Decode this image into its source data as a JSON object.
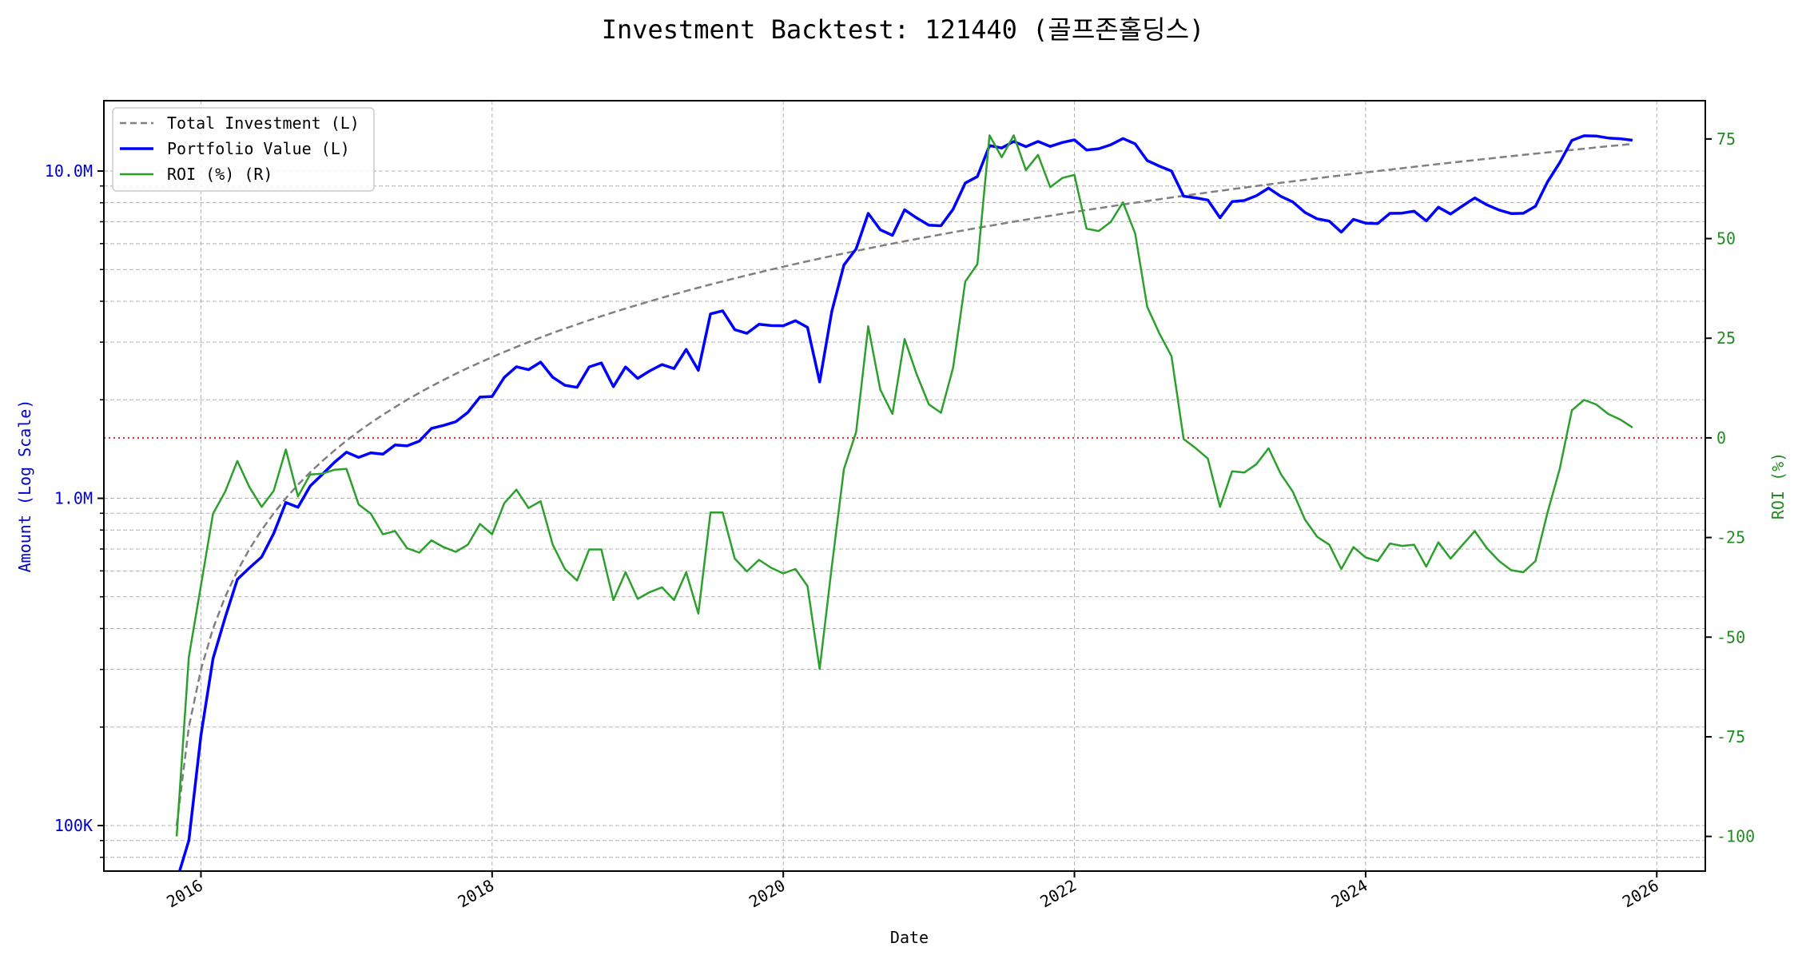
{
  "chart_data": {
    "type": "line",
    "title": "Investment Backtest: 121440 (골프존홀딩스)",
    "xlabel": "Date",
    "ylabel_left": "Amount (Log Scale)",
    "ylabel_right": "ROI (%)",
    "x_ticks": [
      "2016",
      "2018",
      "2020",
      "2022",
      "2024",
      "2026"
    ],
    "x_range": [
      "2015-05",
      "2026-05"
    ],
    "y_left_scale": "log",
    "y_left_range": [
      72600,
      16400000
    ],
    "y_left_ticks": [
      {
        "value": 100000,
        "label": "100K"
      },
      {
        "value": 1000000,
        "label": "1.0M"
      },
      {
        "value": 10000000,
        "label": "10.0M"
      }
    ],
    "y_right_range": [
      -108.7,
      84.6
    ],
    "y_right_ticks": [
      {
        "value": -100,
        "label": "-100"
      },
      {
        "value": -75,
        "label": "-75"
      },
      {
        "value": -50,
        "label": "-50"
      },
      {
        "value": -25,
        "label": "-25"
      },
      {
        "value": 0,
        "label": "0"
      },
      {
        "value": 25,
        "label": "25"
      },
      {
        "value": 50,
        "label": "50"
      },
      {
        "value": 75,
        "label": "75"
      }
    ],
    "grid": true,
    "legend_position": "top-left",
    "reference_line": {
      "axis": "right",
      "value": 0,
      "color": "#d62728",
      "style": "dotted"
    },
    "dates": [
      "2015-11",
      "2015-12",
      "2016-01",
      "2016-02",
      "2016-03",
      "2016-04",
      "2016-05",
      "2016-06",
      "2016-07",
      "2016-08",
      "2016-09",
      "2016-10",
      "2016-11",
      "2016-12",
      "2017-01",
      "2017-02",
      "2017-03",
      "2017-04",
      "2017-05",
      "2017-06",
      "2017-07",
      "2017-08",
      "2017-09",
      "2017-10",
      "2017-11",
      "2017-12",
      "2018-01",
      "2018-02",
      "2018-03",
      "2018-04",
      "2018-05",
      "2018-06",
      "2018-07",
      "2018-08",
      "2018-09",
      "2018-10",
      "2018-11",
      "2018-12",
      "2019-01",
      "2019-02",
      "2019-03",
      "2019-04",
      "2019-05",
      "2019-06",
      "2019-07",
      "2019-08",
      "2019-09",
      "2019-10",
      "2019-11",
      "2019-12",
      "2020-01",
      "2020-02",
      "2020-03",
      "2020-04",
      "2020-05",
      "2020-06",
      "2020-07",
      "2020-08",
      "2020-09",
      "2020-10",
      "2020-11",
      "2020-12",
      "2021-01",
      "2021-02",
      "2021-03",
      "2021-04",
      "2021-05",
      "2021-06",
      "2021-07",
      "2021-08",
      "2021-09",
      "2021-10",
      "2021-11",
      "2021-12",
      "2022-01",
      "2022-02",
      "2022-03",
      "2022-04",
      "2022-05",
      "2022-06",
      "2022-07",
      "2022-08",
      "2022-09",
      "2022-10",
      "2022-11",
      "2022-12",
      "2023-01",
      "2023-02",
      "2023-03",
      "2023-04",
      "2023-05",
      "2023-06",
      "2023-07",
      "2023-08",
      "2023-09",
      "2023-10",
      "2023-11",
      "2023-12",
      "2024-01",
      "2024-02",
      "2024-03",
      "2024-04",
      "2024-05",
      "2024-06",
      "2024-07",
      "2024-08",
      "2024-09",
      "2024-10",
      "2024-11",
      "2024-12",
      "2025-01",
      "2025-02",
      "2025-03",
      "2025-04",
      "2025-05",
      "2025-06",
      "2025-07",
      "2025-08",
      "2025-09",
      "2025-10",
      "2025-11"
    ],
    "series": [
      {
        "name": "Total Investment (L)",
        "axis": "left",
        "color": "#808080",
        "style": "dashed",
        "values": [
          100000,
          200000,
          300000,
          400000,
          500000,
          600000,
          700000,
          800000,
          900000,
          1000000,
          1100000,
          1200000,
          1300000,
          1400000,
          1500000,
          1600000,
          1700000,
          1800000,
          1900000,
          2000000,
          2100000,
          2200000,
          2300000,
          2400000,
          2500000,
          2600000,
          2700000,
          2800000,
          2900000,
          3000000,
          3100000,
          3200000,
          3300000,
          3400000,
          3500000,
          3600000,
          3700000,
          3800000,
          3900000,
          4000000,
          4100000,
          4200000,
          4300000,
          4400000,
          4500000,
          4600000,
          4700000,
          4800000,
          4900000,
          5000000,
          5100000,
          5200000,
          5300000,
          5400000,
          5500000,
          5600000,
          5700000,
          5800000,
          5900000,
          6000000,
          6100000,
          6200000,
          6300000,
          6400000,
          6500000,
          6600000,
          6700000,
          6800000,
          6900000,
          7000000,
          7100000,
          7200000,
          7300000,
          7400000,
          7500000,
          7600000,
          7700000,
          7800000,
          7900000,
          8000000,
          8100000,
          8200000,
          8300000,
          8400000,
          8500000,
          8600000,
          8700000,
          8800000,
          8900000,
          9000000,
          9100000,
          9200000,
          9300000,
          9400000,
          9500000,
          9600000,
          9700000,
          9800000,
          9900000,
          10000000,
          10100000,
          10200000,
          10300000,
          10400000,
          10500000,
          10600000,
          10700000,
          10800000,
          10900000,
          11000000,
          11100000,
          11200000,
          11300000,
          11400000,
          11500000,
          11600000,
          11700000,
          11800000,
          11900000,
          12000000,
          12100000
        ]
      },
      {
        "name": "Portfolio Value (L)",
        "axis": "left",
        "color": "#0000ff",
        "style": "solid",
        "values": [
          0,
          90000,
          189000,
          324000,
          432500,
          565200,
          613200,
          661600,
          780300,
          971000,
          938300,
          1089600,
          1183000,
          1288000,
          1383000,
          1332800,
          1377000,
          1364400,
          1455400,
          1446000,
          1495200,
          1634600,
          1669800,
          1713600,
          1830000,
          2038400,
          2046600,
          2340800,
          2523000,
          2472000,
          2607100,
          2342400,
          2214300,
          2182800,
          2520000,
          2592000,
          2194100,
          2519400,
          2324400,
          2452000,
          2562500,
          2490600,
          2850900,
          2459600,
          3658500,
          3739800,
          3275900,
          3192000,
          3400600,
          3370000,
          3366000,
          3489200,
          3328400,
          2268000,
          3723500,
          5163200,
          5779800,
          7424000,
          6613900,
          6360000,
          7612800,
          7185800,
          6829200,
          6803200,
          7644000,
          9187200,
          9621200,
          11961200,
          11757600,
          12313000,
          11871200,
          12312000,
          11891700,
          12224800,
          12450000,
          11590000,
          11696300,
          12027600,
          12568900,
          12104000,
          10764900,
          10348400,
          10001500,
          8374800,
          8279000,
          8152800,
          7194900,
          8060800,
          8125700,
          8406000,
          8863400,
          8372000,
          8044500,
          7473000,
          7144000,
          7027200,
          6508700,
          7114800,
          6930000,
          6910000,
          7423500,
          7435800,
          7539600,
          7040800,
          7749000,
          7388200,
          7831600,
          8272800,
          7880700,
          7601000,
          7414800,
          7425600,
          7808300,
          9268200,
          10603000,
          12400400,
          12811500,
          12791200,
          12614000,
          12552000,
          12414600
        ]
      },
      {
        "name": "ROI (%) (R)",
        "axis": "right",
        "color": "#2ca02c",
        "style": "solid",
        "values": [
          -100,
          -55,
          -37,
          -19,
          -13.5,
          -5.8,
          -12.4,
          -17.3,
          -13.3,
          -2.9,
          -14.7,
          -9.2,
          -9,
          -8,
          -7.8,
          -16.7,
          -19,
          -24.2,
          -23.4,
          -27.7,
          -28.8,
          -25.7,
          -27.4,
          -28.6,
          -26.8,
          -21.6,
          -24.2,
          -16.4,
          -13,
          -17.6,
          -15.9,
          -26.8,
          -32.9,
          -35.8,
          -28,
          -28,
          -40.7,
          -33.7,
          -40.4,
          -38.7,
          -37.5,
          -40.7,
          -33.7,
          -44.1,
          -18.7,
          -18.7,
          -30.3,
          -33.5,
          -30.6,
          -32.6,
          -34,
          -32.9,
          -37.2,
          -58,
          -32.3,
          -7.8,
          1.4,
          28,
          12.1,
          6,
          24.8,
          15.9,
          8.4,
          6.3,
          17.6,
          39.2,
          43.6,
          75.9,
          70.4,
          75.9,
          67.2,
          71,
          62.9,
          65.2,
          66,
          52.5,
          51.9,
          54.2,
          59.1,
          51.3,
          32.9,
          26.2,
          20.5,
          -0.3,
          -2.6,
          -5.2,
          -17.3,
          -8.4,
          -8.7,
          -6.6,
          -2.6,
          -9,
          -13.5,
          -20.5,
          -24.8,
          -26.8,
          -32.9,
          -27.4,
          -30,
          -30.9,
          -26.5,
          -27.1,
          -26.8,
          -32.3,
          -26.2,
          -30.3,
          -26.8,
          -23.4,
          -27.7,
          -30.9,
          -33.2,
          -33.7,
          -30.9,
          -18.7,
          -7.8,
          6.9,
          9.5,
          8.4,
          6,
          4.6,
          2.6
        ]
      }
    ],
    "colors": {
      "left_axis": "#0000cc",
      "right_axis": "#228b22"
    }
  }
}
